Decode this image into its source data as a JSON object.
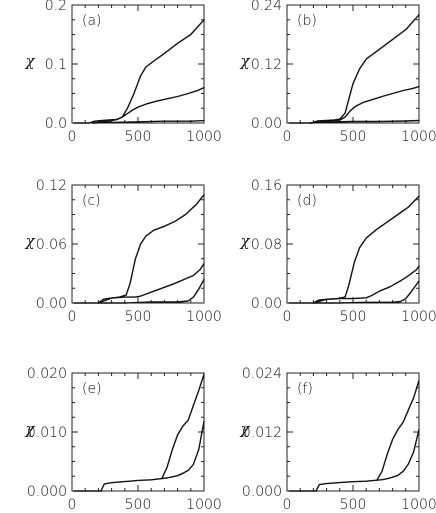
{
  "chart_data": [
    {
      "type": "line",
      "panel_label": "(a)",
      "ylabel": "χ",
      "xlabel": "",
      "xlim": [
        0,
        1000
      ],
      "ylim": [
        0,
        0.2
      ],
      "xticks": [
        "0",
        "500",
        "1000"
      ],
      "yticks": [
        "0.0",
        "0.1",
        "0.2"
      ],
      "series": [
        {
          "x": [
            130,
            170,
            220,
            280,
            340,
            380,
            420,
            470,
            520,
            560,
            620,
            700,
            800,
            900,
            1000
          ],
          "y": [
            0.0,
            0.003,
            0.004,
            0.005,
            0.006,
            0.01,
            0.025,
            0.05,
            0.08,
            0.095,
            0.105,
            0.118,
            0.135,
            0.15,
            0.175
          ]
        },
        {
          "x": [
            160,
            220,
            280,
            340,
            380,
            420,
            460,
            500,
            560,
            640,
            720,
            800,
            880,
            950,
            1000
          ],
          "y": [
            0.0,
            0.002,
            0.003,
            0.006,
            0.01,
            0.016,
            0.022,
            0.027,
            0.032,
            0.037,
            0.041,
            0.045,
            0.05,
            0.055,
            0.06
          ]
        },
        {
          "x": [
            160,
            300,
            500,
            700,
            900,
            1000
          ],
          "y": [
            0.0,
            0.001,
            0.002,
            0.003,
            0.003,
            0.004
          ]
        }
      ]
    },
    {
      "type": "line",
      "panel_label": "(b)",
      "ylabel": "χ",
      "xlabel": "",
      "xlim": [
        0,
        1000
      ],
      "ylim": [
        0,
        0.24
      ],
      "xticks": [
        "0",
        "500",
        "1000"
      ],
      "yticks": [
        "0.00",
        "0.12",
        "0.24"
      ],
      "series": [
        {
          "x": [
            180,
            230,
            300,
            360,
            400,
            440,
            470,
            500,
            550,
            600,
            700,
            800,
            900,
            1000
          ],
          "y": [
            0.0,
            0.004,
            0.005,
            0.006,
            0.008,
            0.02,
            0.05,
            0.08,
            0.11,
            0.13,
            0.15,
            0.17,
            0.19,
            0.22
          ]
        },
        {
          "x": [
            180,
            300,
            400,
            440,
            480,
            520,
            580,
            650,
            720,
            800,
            880,
            950,
            1000
          ],
          "y": [
            0.0,
            0.004,
            0.006,
            0.012,
            0.025,
            0.034,
            0.042,
            0.048,
            0.054,
            0.06,
            0.066,
            0.07,
            0.074
          ]
        },
        {
          "x": [
            180,
            300,
            500,
            700,
            900,
            1000
          ],
          "y": [
            0.0,
            0.002,
            0.003,
            0.003,
            0.004,
            0.005
          ]
        }
      ]
    },
    {
      "type": "line",
      "panel_label": "(c)",
      "ylabel": "χ",
      "xlabel": "",
      "xlim": [
        0,
        1000
      ],
      "ylim": [
        0,
        0.12
      ],
      "xticks": [
        "0",
        "500",
        "1000"
      ],
      "yticks": [
        "0.00",
        "0.06",
        "0.12"
      ],
      "series": [
        {
          "x": [
            200,
            240,
            300,
            360,
            410,
            440,
            480,
            520,
            560,
            620,
            700,
            780,
            860,
            940,
            1000
          ],
          "y": [
            0.0,
            0.004,
            0.005,
            0.006,
            0.008,
            0.02,
            0.045,
            0.06,
            0.068,
            0.074,
            0.078,
            0.083,
            0.09,
            0.1,
            0.11
          ]
        },
        {
          "x": [
            200,
            300,
            400,
            480,
            520,
            560,
            620,
            700,
            780,
            850,
            920,
            970,
            1000
          ],
          "y": [
            0.0,
            0.005,
            0.006,
            0.006,
            0.007,
            0.009,
            0.012,
            0.016,
            0.02,
            0.024,
            0.028,
            0.034,
            0.04
          ]
        },
        {
          "x": [
            200,
            400,
            600,
            800,
            880,
            920,
            960,
            1000
          ],
          "y": [
            0.0,
            0.0,
            0.001,
            0.001,
            0.002,
            0.006,
            0.014,
            0.024
          ]
        }
      ]
    },
    {
      "type": "line",
      "panel_label": "(d)",
      "ylabel": "χ",
      "xlabel": "",
      "xlim": [
        0,
        1000
      ],
      "ylim": [
        0,
        0.16
      ],
      "xticks": [
        "0",
        "500",
        "1000"
      ],
      "yticks": [
        "0.00",
        "0.08",
        "0.16"
      ],
      "series": [
        {
          "x": [
            200,
            240,
            300,
            380,
            440,
            470,
            510,
            550,
            600,
            680,
            760,
            840,
            920,
            1000
          ],
          "y": [
            0.0,
            0.004,
            0.005,
            0.006,
            0.008,
            0.025,
            0.055,
            0.075,
            0.088,
            0.1,
            0.11,
            0.12,
            0.13,
            0.145
          ]
        },
        {
          "x": [
            200,
            300,
            400,
            500,
            600,
            640,
            700,
            780,
            860,
            920,
            980,
            1000
          ],
          "y": [
            0.0,
            0.005,
            0.006,
            0.006,
            0.007,
            0.01,
            0.016,
            0.022,
            0.03,
            0.037,
            0.045,
            0.05
          ]
        },
        {
          "x": [
            200,
            400,
            600,
            800,
            860,
            900,
            940,
            980,
            1000
          ],
          "y": [
            0.0,
            0.0,
            0.001,
            0.001,
            0.002,
            0.006,
            0.015,
            0.025,
            0.03
          ]
        }
      ]
    },
    {
      "type": "line",
      "panel_label": "(e)",
      "ylabel": "χ",
      "xlabel": "",
      "xlim": [
        0,
        1000
      ],
      "ylim": [
        0,
        0.02
      ],
      "xticks": [
        "0",
        "500",
        "1000"
      ],
      "yticks": [
        "0.000",
        "0.010",
        "0.020"
      ],
      "series": [
        {
          "x": [
            220,
            245,
            300,
            400,
            500,
            600,
            680,
            720,
            760,
            800,
            840,
            880,
            920,
            960,
            1000
          ],
          "y": [
            0.0,
            0.0012,
            0.0014,
            0.0016,
            0.0018,
            0.0019,
            0.0021,
            0.004,
            0.007,
            0.0095,
            0.011,
            0.012,
            0.0145,
            0.017,
            0.0198
          ]
        },
        {
          "x": [
            680,
            720,
            760,
            800,
            840,
            880,
            920,
            960,
            1000
          ],
          "y": [
            0.0021,
            0.0022,
            0.0024,
            0.0026,
            0.003,
            0.0035,
            0.0045,
            0.007,
            0.0118
          ]
        }
      ]
    },
    {
      "type": "line",
      "panel_label": "(f)",
      "ylabel": "χ",
      "xlabel": "",
      "xlim": [
        0,
        1000
      ],
      "ylim": [
        0,
        0.024
      ],
      "xticks": [
        "0",
        "500",
        "1000"
      ],
      "yticks": [
        "0.000",
        "0.012",
        "0.024"
      ],
      "series": [
        {
          "x": [
            220,
            245,
            300,
            400,
            500,
            600,
            680,
            720,
            760,
            800,
            840,
            880,
            920,
            960,
            1000
          ],
          "y": [
            0.0,
            0.0013,
            0.0015,
            0.0017,
            0.0019,
            0.002,
            0.0022,
            0.004,
            0.0075,
            0.0105,
            0.0125,
            0.014,
            0.0165,
            0.019,
            0.0225
          ]
        },
        {
          "x": [
            680,
            720,
            760,
            800,
            840,
            880,
            920,
            960,
            1000
          ],
          "y": [
            0.0022,
            0.0023,
            0.0025,
            0.0028,
            0.0032,
            0.004,
            0.0055,
            0.008,
            0.0125
          ]
        }
      ]
    }
  ]
}
